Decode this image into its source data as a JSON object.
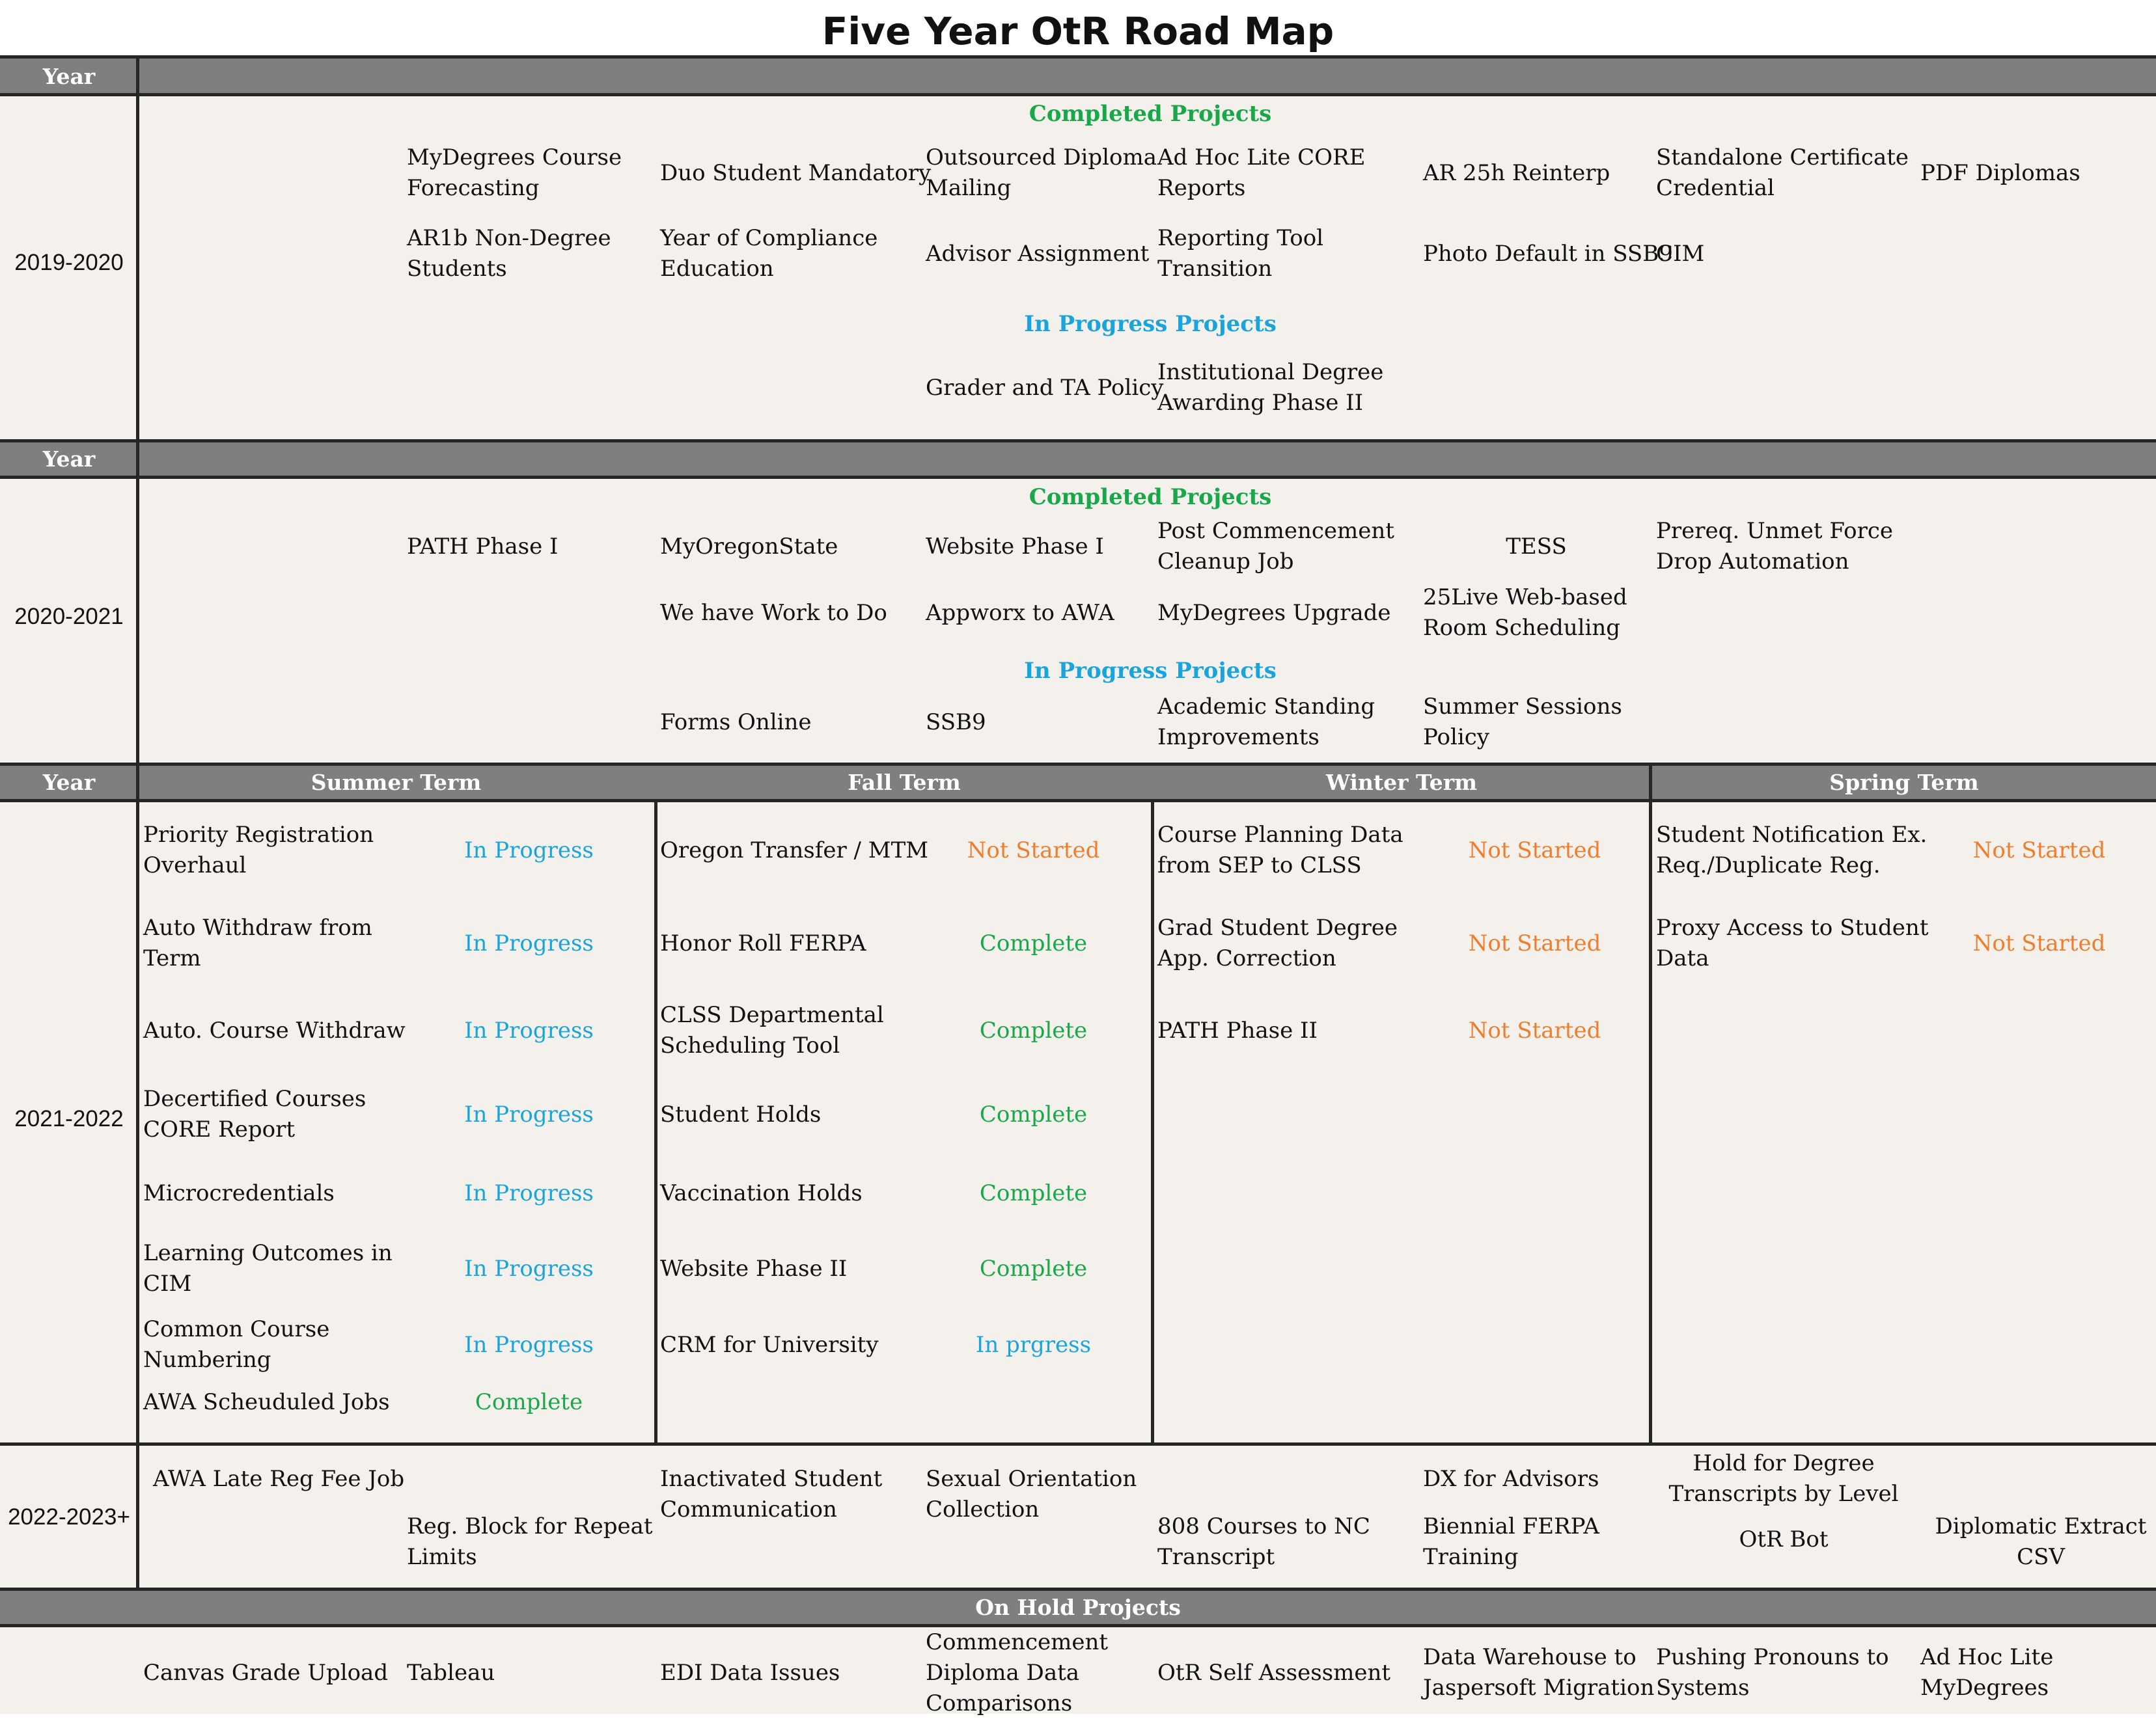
{
  "title": "Five Year OtR Road Map",
  "header_labels": {
    "year": "Year",
    "summer": "Summer Term",
    "fall": "Fall Term",
    "winter": "Winter Term",
    "spring": "Spring Term",
    "on_hold": "On Hold Projects"
  },
  "colors": {
    "completed": "#18a84a",
    "in_progress": "#19a4dc",
    "not_started": "#f07d2c",
    "band": "#7f7f7f",
    "cell_bg": "#f4f1ec"
  },
  "y2019": {
    "year": "2019-2020",
    "completed_label": "Completed Projects",
    "in_progress_label": "In Progress Projects",
    "completed": [
      [
        "MyDegrees Course",
        "Forecasting"
      ],
      [
        "Duo Student Mandatory"
      ],
      [
        "Outsourced Diploma",
        "Mailing"
      ],
      [
        "Ad Hoc Lite CORE",
        "Reports"
      ],
      [
        "AR 25h Reinterp"
      ],
      [
        "Standalone Certificate",
        "Credential"
      ],
      [
        "PDF Diplomas"
      ],
      [
        "AR1b Non-Degree",
        "Students"
      ],
      [
        "Year of Compliance",
        "Education"
      ],
      [
        "Advisor Assignment"
      ],
      [
        "Reporting Tool",
        "Transition"
      ],
      [
        "Photo Default in SSB9"
      ],
      [
        "CIM"
      ]
    ],
    "in_progress": [
      [
        "Grader and TA Policy"
      ],
      [
        "Institutional Degree",
        "Awarding Phase II"
      ]
    ]
  },
  "y2020": {
    "year": "2020-2021",
    "completed_label": "Completed Projects",
    "in_progress_label": "In Progress Projects",
    "completed": [
      [
        "PATH Phase I"
      ],
      [
        "MyOregonState"
      ],
      [
        "Website Phase I"
      ],
      [
        "Post Commencement",
        "Cleanup Job"
      ],
      [
        "TESS"
      ],
      [
        "Prereq. Unmet Force",
        "Drop Automation"
      ],
      [
        "We have Work to Do"
      ],
      [
        "Appworx to AWA"
      ],
      [
        "MyDegrees Upgrade"
      ],
      [
        "25Live Web-based",
        "Room Scheduling"
      ]
    ],
    "in_progress": [
      [
        "Forms Online"
      ],
      [
        "SSB9"
      ],
      [
        "Academic Standing",
        "Improvements"
      ],
      [
        "Summer Sessions",
        "Policy"
      ]
    ]
  },
  "y2021": {
    "year": "2021-2022",
    "summer": [
      {
        "name": [
          "Priority Registration",
          "Overhaul"
        ],
        "status": "In Progress",
        "cls": "blue"
      },
      {
        "name": [
          "Auto Withdraw from",
          "Term"
        ],
        "status": "In Progress",
        "cls": "blue"
      },
      {
        "name": [
          "Auto. Course Withdraw"
        ],
        "status": "In Progress",
        "cls": "blue"
      },
      {
        "name": [
          "Decertified Courses",
          "CORE Report"
        ],
        "status": "In Progress",
        "cls": "blue"
      },
      {
        "name": [
          "Microcredentials"
        ],
        "status": "In Progress",
        "cls": "blue"
      },
      {
        "name": [
          "Learning Outcomes in",
          "CIM"
        ],
        "status": "In Progress",
        "cls": "blue"
      },
      {
        "name": [
          "Common Course",
          "Numbering"
        ],
        "status": "In Progress",
        "cls": "blue"
      },
      {
        "name": [
          "AWA Scheuduled Jobs"
        ],
        "status": "Complete",
        "cls": "green"
      }
    ],
    "fall": [
      {
        "name": [
          "Oregon Transfer / MTM"
        ],
        "status": "Not Started",
        "cls": "orange"
      },
      {
        "name": [
          "Honor Roll FERPA"
        ],
        "status": "Complete",
        "cls": "green"
      },
      {
        "name": [
          "CLSS Departmental",
          "Scheduling Tool"
        ],
        "status": "Complete",
        "cls": "green"
      },
      {
        "name": [
          "Student Holds"
        ],
        "status": "Complete",
        "cls": "green"
      },
      {
        "name": [
          "Vaccination Holds"
        ],
        "status": "Complete",
        "cls": "green"
      },
      {
        "name": [
          "Website Phase II"
        ],
        "status": "Complete",
        "cls": "green"
      },
      {
        "name": [
          "CRM for University"
        ],
        "status": "In prgress",
        "cls": "blue"
      }
    ],
    "winter": [
      {
        "name": [
          "Course Planning Data",
          "from SEP to CLSS"
        ],
        "status": "Not Started",
        "cls": "orange"
      },
      {
        "name": [
          "Grad Student Degree",
          "App. Correction"
        ],
        "status": "Not Started",
        "cls": "orange"
      },
      {
        "name": [
          "PATH Phase II"
        ],
        "status": "Not Started",
        "cls": "orange"
      }
    ],
    "spring": [
      {
        "name": [
          "Student Notification Ex.",
          "Req./Duplicate Reg."
        ],
        "status": "Not Started",
        "cls": "orange"
      },
      {
        "name": [
          "Proxy Access to Student",
          "Data"
        ],
        "status": "Not Started",
        "cls": "orange"
      }
    ]
  },
  "y2022": {
    "year": "2022-2023+",
    "items": [
      [
        "AWA Late Reg Fee Job"
      ],
      [
        "Reg. Block for Repeat",
        "Limits"
      ],
      [
        "Inactivated Student",
        "Communication"
      ],
      [
        "Sexual Orientation",
        "Collection"
      ],
      [
        "808 Courses to NC",
        "Transcript"
      ],
      [
        "DX for Advisors"
      ],
      [
        "Biennial FERPA",
        "Training"
      ],
      [
        "Hold for Degree",
        "Transcripts by Level"
      ],
      [
        "OtR Bot"
      ],
      [
        "Diplomatic Extract",
        "CSV"
      ]
    ]
  },
  "on_hold": [
    [
      "Canvas Grade Upload"
    ],
    [
      "Tableau"
    ],
    [
      "EDI Data Issues"
    ],
    [
      "Commencement",
      "Diploma Data",
      "Comparisons"
    ],
    [
      "OtR Self Assessment"
    ],
    [
      "Data Warehouse to",
      "Jaspersoft Migration"
    ],
    [
      "Pushing Pronouns to",
      "Systems"
    ],
    [
      "Ad Hoc Lite",
      "MyDegrees"
    ]
  ]
}
